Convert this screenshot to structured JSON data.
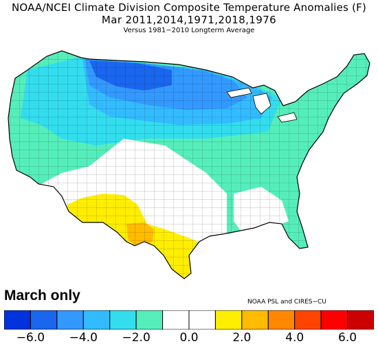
{
  "title": {
    "line1": "NOAA/NCEI Climate Division Composite Temperature Anomalies (F)",
    "line2": "Mar   2011,2014,1971,2018,1976",
    "line3": "Versus 1981−2010 Longterm Average"
  },
  "overlay_label": "March only",
  "credit": "NOAA PSL and CIRES−CU",
  "legend": {
    "colors": [
      "#0033dd",
      "#1a66ee",
      "#3399ff",
      "#33bbff",
      "#33ddee",
      "#55eebb",
      "#ffffff",
      "#ffffff",
      "#ffee00",
      "#ffbb00",
      "#ff8800",
      "#ff4400",
      "#ff0000",
      "#cc0000"
    ],
    "ticks": [
      "−6.0",
      "−4.0",
      "−2.0",
      "0.0",
      "2.0",
      "4.0",
      "6.0"
    ],
    "tick_values": [
      -6,
      -4,
      -2,
      0,
      2,
      4,
      6
    ],
    "range": [
      -7,
      7
    ]
  },
  "map": {
    "region": "Contiguous United States",
    "anomaly_classes": [
      {
        "area": "northern plains / upper midwest",
        "color": "#1a66ee"
      },
      {
        "area": "great lakes / northern tier",
        "color": "#3399ff"
      },
      {
        "area": "central plains band",
        "color": "#33ddee"
      },
      {
        "area": "west / east",
        "color": "#55eebb"
      },
      {
        "area": "southwest / south-central",
        "color": "#ffffff"
      },
      {
        "area": "southern arizona / new mexico / south texas",
        "color": "#ffee00"
      },
      {
        "area": "west texas",
        "color": "#ffbb00"
      }
    ]
  }
}
